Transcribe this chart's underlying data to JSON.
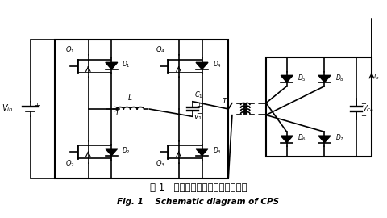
{
  "title_cn": "图 1   电容器充电源电主电路结构图",
  "title_en": "Fig. 1    Schematic diagram of CPS",
  "bg_color": "#ffffff",
  "line_color": "#000000",
  "fig_width": 4.81,
  "fig_height": 2.7,
  "dpi": 100
}
